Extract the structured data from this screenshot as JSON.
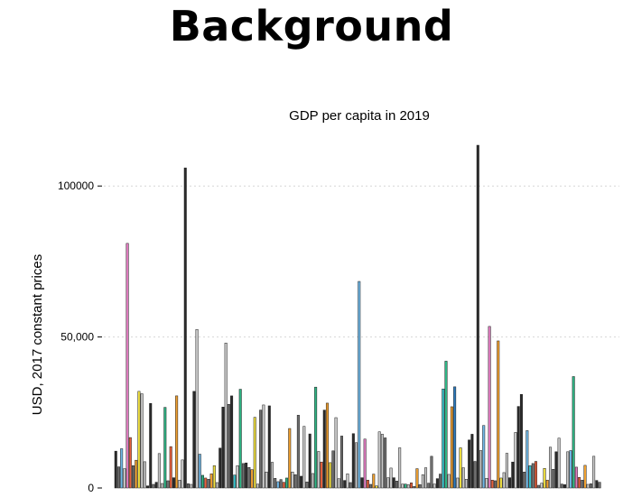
{
  "slide": {
    "title": "Background"
  },
  "chart_data": {
    "type": "bar",
    "title": "GDP per capita in 2019",
    "xlabel": "",
    "ylabel": "USD, 2017 constant prices",
    "ylim": [
      0,
      115000
    ],
    "yticks": [
      {
        "value": 0,
        "label": "0"
      },
      {
        "value": 50000,
        "label": "50,000"
      },
      {
        "value": 100000,
        "label": "100000"
      }
    ],
    "grid": true,
    "legend": "none",
    "colors": {
      "black": "#2b2b2b",
      "grey": "#6f6f6f",
      "lightgrey": "#c9c9c9",
      "blue": "#6fb7e6",
      "orange": "#f0a030",
      "yellow": "#f0e040",
      "green": "#2fb585",
      "pink": "#e07cc0",
      "red": "#e8603c",
      "darkblue": "#2b7bbf",
      "cyan": "#36c1c9"
    },
    "bars": [
      {
        "v": 12200,
        "c": "black"
      },
      {
        "v": 7000,
        "c": "grey"
      },
      {
        "v": 13000,
        "c": "blue"
      },
      {
        "v": 6400,
        "c": "lightgrey"
      },
      {
        "v": 81000,
        "c": "pink"
      },
      {
        "v": 16700,
        "c": "red"
      },
      {
        "v": 7400,
        "c": "grey"
      },
      {
        "v": 9200,
        "c": "orange"
      },
      {
        "v": 32000,
        "c": "yellow"
      },
      {
        "v": 31200,
        "c": "lightgrey"
      },
      {
        "v": 8700,
        "c": "lightgrey"
      },
      {
        "v": 700,
        "c": "black"
      },
      {
        "v": 28000,
        "c": "black"
      },
      {
        "v": 1200,
        "c": "grey"
      },
      {
        "v": 1900,
        "c": "black"
      },
      {
        "v": 11400,
        "c": "lightgrey"
      },
      {
        "v": 1500,
        "c": "lightgrey"
      },
      {
        "v": 26700,
        "c": "green"
      },
      {
        "v": 2400,
        "c": "grey"
      },
      {
        "v": 13700,
        "c": "red"
      },
      {
        "v": 3400,
        "c": "black"
      },
      {
        "v": 30500,
        "c": "orange"
      },
      {
        "v": 2600,
        "c": "lightgrey"
      },
      {
        "v": 9300,
        "c": "lightgrey"
      },
      {
        "v": 106000,
        "c": "black"
      },
      {
        "v": 1400,
        "c": "grey"
      },
      {
        "v": 1200,
        "c": "lightgrey"
      },
      {
        "v": 32000,
        "c": "black"
      },
      {
        "v": 52500,
        "c": "lightgrey"
      },
      {
        "v": 11200,
        "c": "blue"
      },
      {
        "v": 4200,
        "c": "green"
      },
      {
        "v": 3300,
        "c": "red"
      },
      {
        "v": 2900,
        "c": "grey"
      },
      {
        "v": 4700,
        "c": "orange"
      },
      {
        "v": 7400,
        "c": "yellow"
      },
      {
        "v": 1800,
        "c": "lightgrey"
      },
      {
        "v": 13200,
        "c": "black"
      },
      {
        "v": 26800,
        "c": "black"
      },
      {
        "v": 48000,
        "c": "lightgrey"
      },
      {
        "v": 27700,
        "c": "grey"
      },
      {
        "v": 30500,
        "c": "black"
      },
      {
        "v": 4300,
        "c": "cyan"
      },
      {
        "v": 7400,
        "c": "lightgrey"
      },
      {
        "v": 32700,
        "c": "green"
      },
      {
        "v": 8100,
        "c": "grey"
      },
      {
        "v": 8300,
        "c": "black"
      },
      {
        "v": 6800,
        "c": "grey"
      },
      {
        "v": 6100,
        "c": "orange"
      },
      {
        "v": 23400,
        "c": "yellow"
      },
      {
        "v": 1300,
        "c": "lightgrey"
      },
      {
        "v": 25800,
        "c": "grey"
      },
      {
        "v": 27500,
        "c": "lightgrey"
      },
      {
        "v": 5300,
        "c": "lightgrey"
      },
      {
        "v": 27200,
        "c": "black"
      },
      {
        "v": 8500,
        "c": "lightgrey"
      },
      {
        "v": 3200,
        "c": "grey"
      },
      {
        "v": 2100,
        "c": "blue"
      },
      {
        "v": 2800,
        "c": "grey"
      },
      {
        "v": 1900,
        "c": "red"
      },
      {
        "v": 3300,
        "c": "green"
      },
      {
        "v": 19700,
        "c": "orange"
      },
      {
        "v": 5300,
        "c": "lightgrey"
      },
      {
        "v": 4400,
        "c": "grey"
      },
      {
        "v": 24100,
        "c": "grey"
      },
      {
        "v": 3900,
        "c": "black"
      },
      {
        "v": 20400,
        "c": "lightgrey"
      },
      {
        "v": 2000,
        "c": "grey"
      },
      {
        "v": 17900,
        "c": "black"
      },
      {
        "v": 4800,
        "c": "lightgrey"
      },
      {
        "v": 33400,
        "c": "green"
      },
      {
        "v": 12100,
        "c": "lightgrey"
      },
      {
        "v": 8600,
        "c": "red"
      },
      {
        "v": 25800,
        "c": "black"
      },
      {
        "v": 28100,
        "c": "orange"
      },
      {
        "v": 8400,
        "c": "yellow"
      },
      {
        "v": 12300,
        "c": "grey"
      },
      {
        "v": 23300,
        "c": "lightgrey"
      },
      {
        "v": 3100,
        "c": "lightgrey"
      },
      {
        "v": 17200,
        "c": "grey"
      },
      {
        "v": 2500,
        "c": "black"
      },
      {
        "v": 4700,
        "c": "lightgrey"
      },
      {
        "v": 1800,
        "c": "grey"
      },
      {
        "v": 18000,
        "c": "black"
      },
      {
        "v": 15000,
        "c": "lightgrey"
      },
      {
        "v": 68400,
        "c": "blue"
      },
      {
        "v": 3400,
        "c": "black"
      },
      {
        "v": 16200,
        "c": "pink"
      },
      {
        "v": 2600,
        "c": "red"
      },
      {
        "v": 1200,
        "c": "grey"
      },
      {
        "v": 4600,
        "c": "orange"
      },
      {
        "v": 700,
        "c": "yellow"
      },
      {
        "v": 18600,
        "c": "lightgrey"
      },
      {
        "v": 17800,
        "c": "lightgrey"
      },
      {
        "v": 16600,
        "c": "grey"
      },
      {
        "v": 3400,
        "c": "lightgrey"
      },
      {
        "v": 6600,
        "c": "lightgrey"
      },
      {
        "v": 3400,
        "c": "black"
      },
      {
        "v": 2300,
        "c": "grey"
      },
      {
        "v": 13300,
        "c": "lightgrey"
      },
      {
        "v": 1300,
        "c": "lightgrey"
      },
      {
        "v": 1300,
        "c": "green"
      },
      {
        "v": 1100,
        "c": "lightgrey"
      },
      {
        "v": 1700,
        "c": "red"
      },
      {
        "v": 500,
        "c": "grey"
      },
      {
        "v": 6400,
        "c": "orange"
      },
      {
        "v": 1100,
        "c": "grey"
      },
      {
        "v": 4400,
        "c": "lightgrey"
      },
      {
        "v": 6700,
        "c": "lightgrey"
      },
      {
        "v": 1600,
        "c": "grey"
      },
      {
        "v": 10500,
        "c": "grey"
      },
      {
        "v": 1300,
        "c": "lightgrey"
      },
      {
        "v": 3100,
        "c": "black"
      },
      {
        "v": 4600,
        "c": "grey"
      },
      {
        "v": 32800,
        "c": "cyan"
      },
      {
        "v": 42000,
        "c": "green"
      },
      {
        "v": 4500,
        "c": "lightgrey"
      },
      {
        "v": 26900,
        "c": "orange"
      },
      {
        "v": 33500,
        "c": "darkblue"
      },
      {
        "v": 3300,
        "c": "lightgrey"
      },
      {
        "v": 13300,
        "c": "yellow"
      },
      {
        "v": 6700,
        "c": "lightgrey"
      },
      {
        "v": 2900,
        "c": "lightgrey"
      },
      {
        "v": 15900,
        "c": "black"
      },
      {
        "v": 17800,
        "c": "black"
      },
      {
        "v": 8800,
        "c": "grey"
      },
      {
        "v": 113500,
        "c": "black"
      },
      {
        "v": 12400,
        "c": "lightgrey"
      },
      {
        "v": 20700,
        "c": "blue"
      },
      {
        "v": 3200,
        "c": "lightgrey"
      },
      {
        "v": 53500,
        "c": "pink"
      },
      {
        "v": 2600,
        "c": "red"
      },
      {
        "v": 2400,
        "c": "grey"
      },
      {
        "v": 48700,
        "c": "orange"
      },
      {
        "v": 3300,
        "c": "yellow"
      },
      {
        "v": 5100,
        "c": "lightgrey"
      },
      {
        "v": 11500,
        "c": "lightgrey"
      },
      {
        "v": 3400,
        "c": "black"
      },
      {
        "v": 8600,
        "c": "black"
      },
      {
        "v": 18400,
        "c": "lightgrey"
      },
      {
        "v": 27000,
        "c": "black"
      },
      {
        "v": 31000,
        "c": "black"
      },
      {
        "v": 5300,
        "c": "grey"
      },
      {
        "v": 19000,
        "c": "blue"
      },
      {
        "v": 7400,
        "c": "cyan"
      },
      {
        "v": 8100,
        "c": "grey"
      },
      {
        "v": 8800,
        "c": "red"
      },
      {
        "v": 900,
        "c": "grey"
      },
      {
        "v": 1600,
        "c": "lightgrey"
      },
      {
        "v": 6500,
        "c": "yellow"
      },
      {
        "v": 2600,
        "c": "orange"
      },
      {
        "v": 13500,
        "c": "lightgrey"
      },
      {
        "v": 6200,
        "c": "grey"
      },
      {
        "v": 12000,
        "c": "black"
      },
      {
        "v": 16500,
        "c": "lightgrey"
      },
      {
        "v": 1300,
        "c": "grey"
      },
      {
        "v": 1100,
        "c": "black"
      },
      {
        "v": 12000,
        "c": "lightgrey"
      },
      {
        "v": 12400,
        "c": "blue"
      },
      {
        "v": 36900,
        "c": "green"
      },
      {
        "v": 6900,
        "c": "pink"
      },
      {
        "v": 3500,
        "c": "red"
      },
      {
        "v": 2600,
        "c": "grey"
      },
      {
        "v": 7500,
        "c": "orange"
      },
      {
        "v": 1200,
        "c": "lightgrey"
      },
      {
        "v": 1400,
        "c": "grey"
      },
      {
        "v": 10500,
        "c": "lightgrey"
      },
      {
        "v": 2500,
        "c": "black"
      },
      {
        "v": 1900,
        "c": "grey"
      }
    ]
  }
}
